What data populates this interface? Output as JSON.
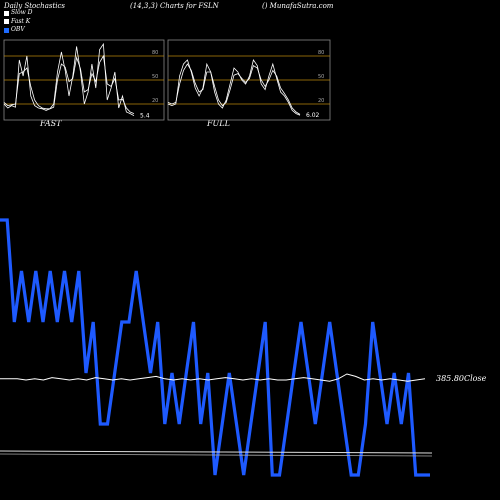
{
  "header": {
    "title": "Daily Stochastics",
    "params": "(14,3,3) Charts for FSLN",
    "site": "() MunafaSutra.com"
  },
  "legend": [
    {
      "label": "Slow  D",
      "color": "#ffffff"
    },
    {
      "label": "Fast  K",
      "color": "#ffffff"
    },
    {
      "label": "OBV",
      "color": "#1e6bff"
    }
  ],
  "colors": {
    "obv": "#1e5aff",
    "stoch": "#ffffff",
    "level_line": "#b8860b",
    "price": "#ffffff",
    "background": "#000000"
  },
  "chart_data": [
    {
      "type": "line",
      "label": "FAST",
      "yticks": [
        20,
        50,
        80
      ],
      "ylim": [
        0,
        100
      ],
      "last_value_label": "5.4",
      "series": [
        {
          "values": [
            20,
            15,
            18,
            16,
            75,
            55,
            80,
            30,
            18,
            15,
            14,
            12,
            14,
            20,
            60,
            85,
            62,
            30,
            55,
            92,
            60,
            20,
            35,
            70,
            40,
            88,
            95,
            25,
            40,
            60,
            15,
            30,
            10,
            8,
            5.4
          ]
        },
        {
          "values": [
            22,
            18,
            19,
            20,
            58,
            60,
            65,
            42,
            25,
            18,
            15,
            14,
            14,
            16,
            50,
            70,
            66,
            48,
            52,
            78,
            64,
            35,
            38,
            58,
            48,
            72,
            80,
            45,
            42,
            52,
            25,
            26,
            15,
            10,
            8
          ]
        }
      ]
    },
    {
      "type": "line",
      "label": "FULL",
      "yticks": [
        20,
        50,
        80
      ],
      "ylim": [
        0,
        100
      ],
      "last_value_label": "6.02",
      "series": [
        {
          "values": [
            20,
            18,
            20,
            55,
            70,
            75,
            60,
            40,
            30,
            40,
            70,
            60,
            35,
            20,
            15,
            25,
            45,
            65,
            60,
            50,
            45,
            55,
            75,
            68,
            45,
            38,
            55,
            70,
            52,
            35,
            30,
            22,
            12,
            8,
            6.02
          ]
        },
        {
          "values": [
            22,
            20,
            22,
            45,
            62,
            70,
            62,
            46,
            35,
            38,
            60,
            60,
            42,
            25,
            18,
            22,
            38,
            56,
            58,
            52,
            47,
            52,
            68,
            65,
            50,
            42,
            50,
            62,
            55,
            40,
            33,
            25,
            15,
            10,
            7
          ]
        }
      ]
    },
    {
      "type": "line",
      "close_label": "385.80Close",
      "series": [
        {
          "values": [
            5,
            5,
            3,
            4,
            3,
            4,
            3,
            4,
            3,
            4,
            3,
            4,
            2,
            3,
            1,
            1,
            2,
            3,
            3,
            4,
            3,
            2,
            3,
            1,
            2,
            1,
            2,
            3,
            1,
            2,
            0,
            1,
            2,
            1,
            0,
            1,
            2,
            3,
            0,
            0,
            1,
            2,
            3,
            2,
            1,
            2,
            3,
            2,
            1,
            0,
            0,
            1,
            3,
            2,
            1,
            2,
            1,
            2,
            0,
            0,
            0
          ]
        },
        {
          "values": [
            101,
            101,
            101,
            100,
            101,
            100,
            102,
            101,
            100,
            101,
            100,
            102,
            101,
            100,
            101,
            100,
            101,
            102,
            103,
            101,
            100,
            101,
            100,
            101,
            100,
            101,
            102,
            101,
            100,
            101,
            100,
            101,
            100,
            100,
            101,
            102,
            101,
            100,
            99,
            101,
            105,
            103,
            100,
            101,
            100,
            101,
            100,
            99,
            100,
            101
          ]
        }
      ]
    }
  ]
}
